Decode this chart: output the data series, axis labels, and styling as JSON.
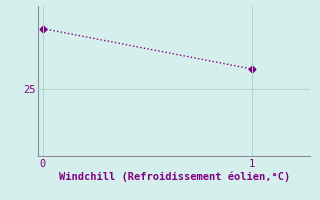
{
  "xlabel": "Windchill (Refroidissement éolien,°C)",
  "x_data": [
    0,
    1
  ],
  "y_data": [
    29.0,
    26.3
  ],
  "xlim": [
    -0.02,
    1.28
  ],
  "ylim": [
    20.5,
    30.5
  ],
  "xticks": [
    0,
    1
  ],
  "yticks": [
    25
  ],
  "line_color": "#800080",
  "background_color": "#d5f0ec",
  "grid_color": "#b0d4cf",
  "text_color": "#800080",
  "axis_color": "#8a8a9a",
  "font_size": 7.5,
  "line_width": 1.0,
  "marker": "D",
  "marker_size": 3.5
}
